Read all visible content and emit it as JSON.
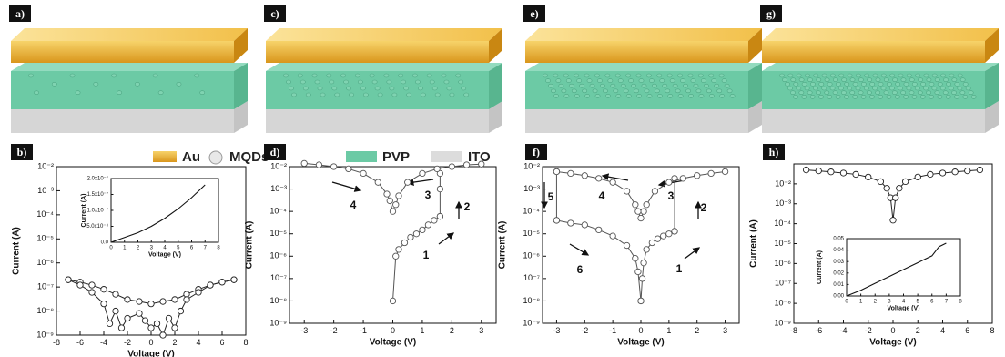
{
  "schematic_labels": [
    "a)",
    "c)",
    "e)",
    "g)"
  ],
  "legend": [
    "Au",
    "MQDs",
    "PVP",
    "ITO"
  ],
  "chart_data": [
    {
      "type": "line",
      "panel_label": "b)",
      "markers": true,
      "yscale": "log",
      "xlabel": "Voltage (V)",
      "ylabel": "Current (A)",
      "xlim": [
        -8,
        8
      ],
      "xticks": [
        -8,
        -6,
        -4,
        -2,
        0,
        2,
        4,
        6,
        8
      ],
      "ylim": [
        1e-09,
        0.01
      ],
      "yticks": [
        {
          "value": 1e-09,
          "label": "10⁻⁹"
        },
        {
          "value": 1e-08,
          "label": "10⁻⁸"
        },
        {
          "value": 1e-07,
          "label": "10⁻⁷"
        },
        {
          "value": 1e-06,
          "label": "10⁻⁶"
        },
        {
          "value": 1e-05,
          "label": "10⁻⁵"
        },
        {
          "value": 0.0001,
          "label": "10⁻⁴"
        },
        {
          "value": 0.001,
          "label": "10⁻³"
        },
        {
          "value": 0.01,
          "label": "10⁻²"
        }
      ],
      "series": [
        {
          "color": "#222",
          "x": [
            -7,
            -6,
            -5,
            -4,
            -3,
            -2,
            -1,
            0,
            1,
            2,
            3,
            4,
            5,
            6,
            7
          ],
          "values": [
            2e-07,
            1.6e-07,
            1.2e-07,
            8e-08,
            5e-08,
            3e-08,
            2.5e-08,
            2e-08,
            2.5e-08,
            3e-08,
            5e-08,
            8e-08,
            1.2e-07,
            1.6e-07,
            2e-07
          ]
        },
        {
          "color": "#222",
          "x": [
            -7,
            -6,
            -5,
            -4,
            -3.5,
            -3,
            -2.5,
            -2,
            -1,
            -0.5,
            0,
            0.5,
            1,
            1.5,
            2,
            2.5,
            3,
            4,
            5,
            6,
            7
          ],
          "values": [
            2e-07,
            1.2e-07,
            6e-08,
            2e-08,
            3e-09,
            1e-08,
            2e-09,
            5e-09,
            8e-09,
            4e-09,
            2e-09,
            3e-09,
            1e-09,
            5e-09,
            2e-09,
            1e-08,
            3e-08,
            6e-08,
            1.2e-07,
            1.6e-07,
            2e-07
          ]
        }
      ]
    },
    {
      "type": "line",
      "markers": false,
      "xlabel": "Voltage (V)",
      "ylabel": "Current (A)",
      "xlim": [
        0,
        8
      ],
      "xticks": [
        0,
        1,
        2,
        3,
        4,
        5,
        6,
        7,
        8
      ],
      "ylim": [
        0,
        2e-07
      ],
      "yticks": [
        {
          "value": 0,
          "label": "0.0"
        },
        {
          "value": 5e-08,
          "label": "5.0x10⁻⁸"
        },
        {
          "value": 1e-07,
          "label": "1.0x10⁻⁷"
        },
        {
          "value": 1.5e-07,
          "label": "1.5x10⁻⁷"
        },
        {
          "value": 2e-07,
          "label": "2.0x10⁻⁷"
        }
      ],
      "series": [
        {
          "color": "#111",
          "x": [
            0,
            1,
            2,
            3,
            4,
            5,
            6,
            7
          ],
          "values": [
            0,
            1.5e-08,
            3e-08,
            5e-08,
            7.5e-08,
            1.05e-07,
            1.4e-07,
            1.8e-07
          ]
        }
      ]
    },
    {
      "type": "line",
      "panel_label": "d)",
      "markers": true,
      "yscale": "log",
      "xlim": [
        -3.5,
        3.5
      ],
      "xticks": [
        -3,
        -2,
        -1,
        0,
        1,
        2,
        3
      ],
      "ylim": [
        1e-09,
        0.01
      ],
      "yticks": [
        {
          "value": 1e-09,
          "label": "10⁻⁹"
        },
        {
          "value": 1e-08,
          "label": "10⁻⁸"
        },
        {
          "value": 1e-07,
          "label": "10⁻⁷"
        },
        {
          "value": 1e-06,
          "label": "10⁻⁶"
        },
        {
          "value": 1e-05,
          "label": "10⁻⁵"
        },
        {
          "value": 0.0001,
          "label": "10⁻⁴"
        },
        {
          "value": 0.001,
          "label": "10⁻³"
        },
        {
          "value": 0.01,
          "label": "10⁻²"
        }
      ],
      "xlabel": "Voltage (V)",
      "ylabel": "Current (A)",
      "annotations": [
        "1",
        "2",
        "3",
        "4"
      ],
      "series": [
        {
          "color": "#555",
          "x": [
            0,
            0.1,
            0.2,
            0.4,
            0.6,
            0.8,
            1.0,
            1.2,
            1.4,
            1.6
          ],
          "values": [
            1e-08,
            1e-06,
            2e-06,
            4e-06,
            7e-06,
            1e-05,
            1.5e-05,
            2.5e-05,
            4e-05,
            6e-05
          ]
        },
        {
          "color": "#555",
          "x": [
            1.6,
            1.6,
            1.6
          ],
          "values": [
            6e-05,
            0.001,
            0.005
          ]
        },
        {
          "color": "#555",
          "x": [
            3,
            2.5,
            2,
            1.5,
            1,
            0.5,
            0.2,
            0.1,
            0,
            -0.1,
            -0.2,
            -0.5,
            -1,
            -1.5,
            -2,
            -2.5,
            -3
          ],
          "values": [
            0.013,
            0.012,
            0.01,
            0.008,
            0.005,
            0.002,
            0.0005,
            0.0002,
            0.0001,
            0.0003,
            0.0006,
            0.002,
            0.005,
            0.008,
            0.01,
            0.012,
            0.014
          ]
        }
      ]
    },
    {
      "type": "line",
      "panel_label": "f)",
      "markers": true,
      "yscale": "log",
      "xlim": [
        -3.5,
        3.5
      ],
      "xticks": [
        -3,
        -2,
        -1,
        0,
        1,
        2,
        3
      ],
      "ylim": [
        1e-09,
        0.01
      ],
      "yticks": [
        {
          "value": 1e-09,
          "label": "10⁻⁹"
        },
        {
          "value": 1e-08,
          "label": "10⁻⁸"
        },
        {
          "value": 1e-07,
          "label": "10⁻⁷"
        },
        {
          "value": 1e-06,
          "label": "10⁻⁶"
        },
        {
          "value": 1e-05,
          "label": "10⁻⁵"
        },
        {
          "value": 0.0001,
          "label": "10⁻⁴"
        },
        {
          "value": 0.001,
          "label": "10⁻³"
        },
        {
          "value": 0.01,
          "label": "10⁻²"
        }
      ],
      "xlabel": "Voltage (V)",
      "ylabel": "Current (A)",
      "annotations": [
        "1",
        "2",
        "3",
        "4",
        "5",
        "6"
      ],
      "series": [
        {
          "color": "#555",
          "x": [
            0,
            0.05,
            0.1,
            0.2,
            0.4,
            0.6,
            0.8,
            1.0,
            1.2
          ],
          "values": [
            1e-08,
            1e-07,
            5e-07,
            2e-06,
            4e-06,
            6e-06,
            8e-06,
            1e-05,
            1.3e-05
          ]
        },
        {
          "color": "#555",
          "x": [
            1.2,
            1.2
          ],
          "values": [
            1.3e-05,
            0.003
          ]
        },
        {
          "color": "#555",
          "x": [
            3,
            2.5,
            2,
            1.5,
            1,
            0.5,
            0.2,
            0.1,
            0,
            -0.1,
            -0.2,
            -0.5,
            -1,
            -1.5,
            -2,
            -2.5,
            -3
          ],
          "values": [
            0.006,
            0.005,
            0.004,
            0.003,
            0.002,
            0.0008,
            0.0002,
            0.0001,
            5e-05,
            0.0001,
            0.0002,
            0.0008,
            0.002,
            0.003,
            0.004,
            0.005,
            0.006
          ]
        },
        {
          "color": "#555",
          "x": [
            -3,
            -3
          ],
          "values": [
            0.006,
            4e-05
          ]
        },
        {
          "color": "#555",
          "x": [
            -3,
            -2.5,
            -2,
            -1.5,
            -1,
            -0.5,
            -0.2,
            -0.1,
            0
          ],
          "values": [
            4e-05,
            3e-05,
            2.5e-05,
            1.5e-05,
            8e-06,
            3e-06,
            8e-07,
            2e-07,
            1e-08
          ]
        }
      ]
    },
    {
      "type": "line",
      "panel_label": "h)",
      "markers": true,
      "yscale": "log",
      "xlim": [
        -8,
        8
      ],
      "xticks": [
        -8,
        -6,
        -4,
        -2,
        0,
        2,
        4,
        6,
        8
      ],
      "ylim": [
        1e-09,
        0.1
      ],
      "yticks": [
        {
          "value": 1e-09,
          "label": "10⁻⁹"
        },
        {
          "value": 1e-08,
          "label": "10⁻⁸"
        },
        {
          "value": 1e-07,
          "label": "10⁻⁷"
        },
        {
          "value": 1e-06,
          "label": "10⁻⁶"
        },
        {
          "value": 1e-05,
          "label": "10⁻⁵"
        },
        {
          "value": 0.0001,
          "label": "10⁻⁴"
        },
        {
          "value": 0.001,
          "label": "10⁻³"
        },
        {
          "value": 0.01,
          "label": "10⁻²"
        }
      ],
      "xlabel": "Voltage (V)",
      "ylabel": "Current (A)",
      "series": [
        {
          "color": "#222",
          "x": [
            -7,
            -6,
            -5,
            -4,
            -3,
            -2,
            -1,
            -0.5,
            -0.2,
            0,
            0.2,
            0.5,
            1,
            2,
            3,
            4,
            5,
            6,
            7
          ],
          "values": [
            0.05,
            0.045,
            0.04,
            0.035,
            0.03,
            0.022,
            0.013,
            0.006,
            0.002,
            0.00015,
            0.002,
            0.006,
            0.013,
            0.022,
            0.03,
            0.035,
            0.04,
            0.045,
            0.05
          ]
        }
      ]
    },
    {
      "type": "line",
      "markers": false,
      "xlabel": "Voltage (V)",
      "ylabel": "Current (A)",
      "xlim": [
        0,
        8
      ],
      "xticks": [
        0,
        1,
        2,
        3,
        4,
        5,
        6,
        7,
        8
      ],
      "ylim": [
        0,
        0.05
      ],
      "yticks": [
        {
          "value": 0,
          "label": "0.00"
        },
        {
          "value": 0.01,
          "label": "0.01"
        },
        {
          "value": 0.02,
          "label": "0.02"
        },
        {
          "value": 0.03,
          "label": "0.03"
        },
        {
          "value": 0.04,
          "label": "0.04"
        },
        {
          "value": 0.05,
          "label": "0.05"
        }
      ],
      "series": [
        {
          "color": "#111",
          "x": [
            0,
            1,
            2,
            3,
            4,
            5,
            6,
            6.5,
            7
          ],
          "values": [
            0,
            0.005,
            0.011,
            0.017,
            0.023,
            0.029,
            0.035,
            0.043,
            0.046
          ]
        }
      ]
    }
  ]
}
